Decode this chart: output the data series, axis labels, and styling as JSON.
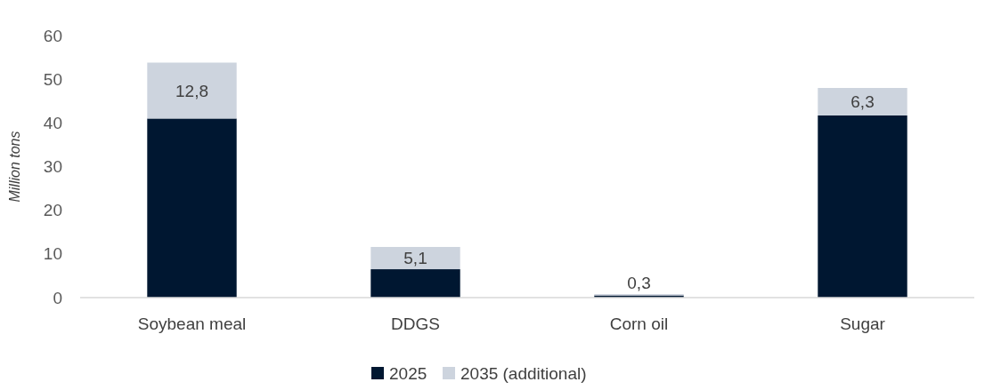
{
  "chart_data": {
    "type": "bar",
    "stacked": true,
    "ylabel": "Million tons",
    "categories": [
      "Soybean meal",
      "DDGS",
      "Corn oil",
      "Sugar"
    ],
    "series": [
      {
        "name": "2025",
        "color": "#001731",
        "values": [
          41.0,
          6.5,
          0.5,
          41.7
        ]
      },
      {
        "name": "2035 (additional)",
        "color": "#cdd4de",
        "values": [
          12.8,
          5.1,
          0.3,
          6.3
        ],
        "value_labels": [
          "12,8",
          "5,1",
          "0,3",
          "6,3"
        ]
      }
    ],
    "ylim": [
      0,
      60
    ],
    "yticks": [
      0,
      10,
      20,
      30,
      40,
      50,
      60
    ],
    "grid": false,
    "legend": "bottom"
  }
}
